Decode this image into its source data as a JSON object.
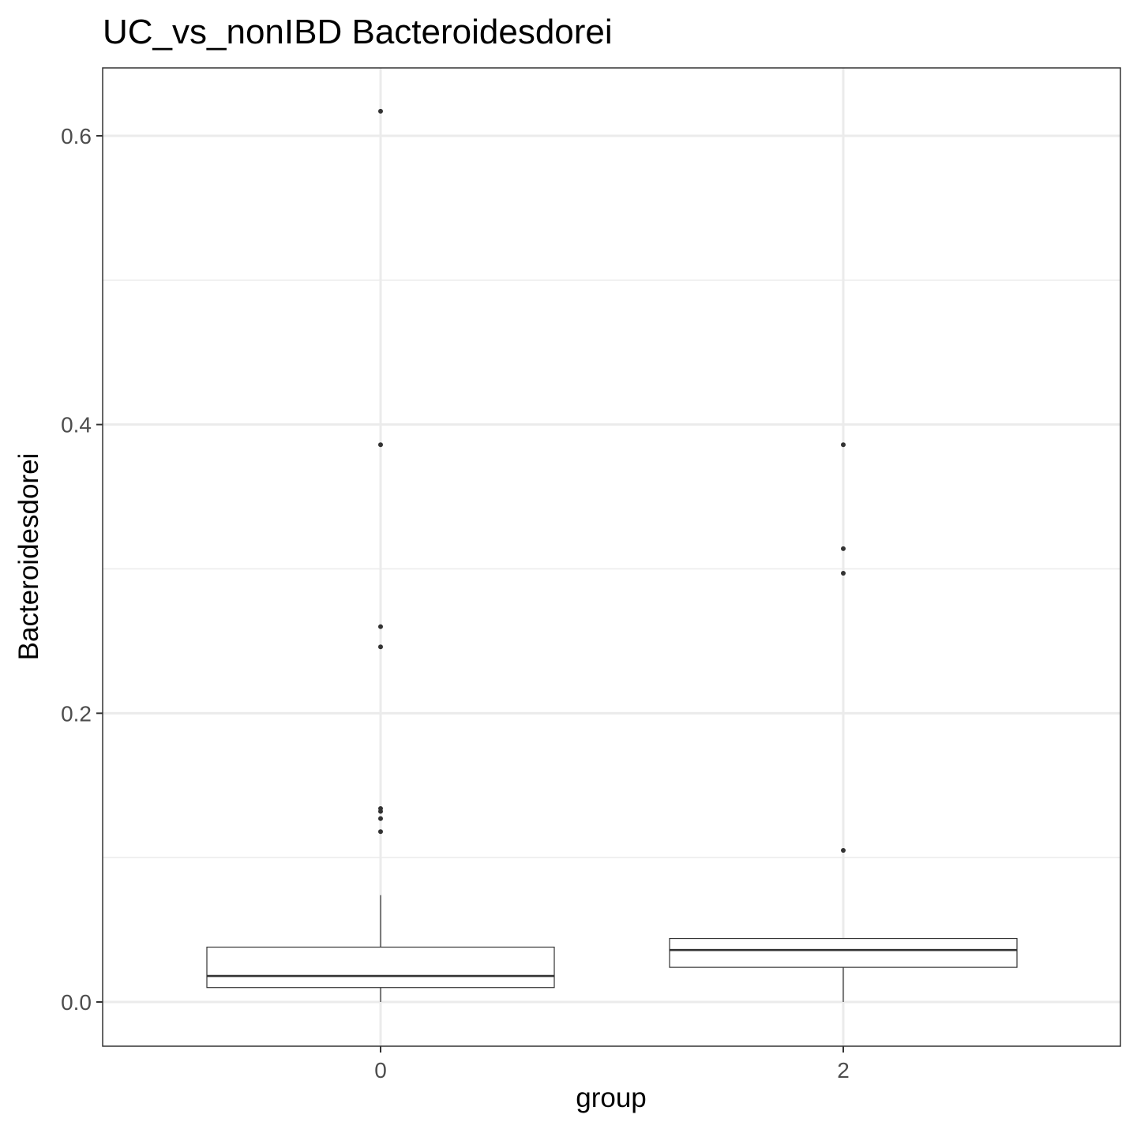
{
  "chart_data": {
    "type": "boxplot",
    "title": "UC_vs_nonIBD Bacteroidesdorei",
    "xlabel": "group",
    "ylabel": "Bacteroidesdorei",
    "categories": [
      "0",
      "2"
    ],
    "ylim": [
      -0.03,
      0.65
    ],
    "yticks": [
      0.0,
      0.2,
      0.4,
      0.6
    ],
    "ytick_labels": [
      "0.0",
      "0.2",
      "0.4",
      "0.6"
    ],
    "grid": true,
    "legend": "none",
    "boxes": [
      {
        "category": "0",
        "min": 0.0,
        "q1": 0.01,
        "median": 0.018,
        "q3": 0.038,
        "max": 0.074,
        "outliers": [
          0.617,
          0.386,
          0.26,
          0.246,
          0.134,
          0.132,
          0.127,
          0.118
        ]
      },
      {
        "category": "2",
        "min": 0.0,
        "q1": 0.024,
        "median": 0.036,
        "q3": 0.044,
        "max": 0.044,
        "outliers": [
          0.386,
          0.314,
          0.297,
          0.105
        ]
      }
    ],
    "colors": {
      "panel_background": "#ffffff",
      "grid": "#ebebeb",
      "box_fill": "#ffffff",
      "box_line": "#333333",
      "point": "#333333",
      "border": "#333333"
    }
  }
}
